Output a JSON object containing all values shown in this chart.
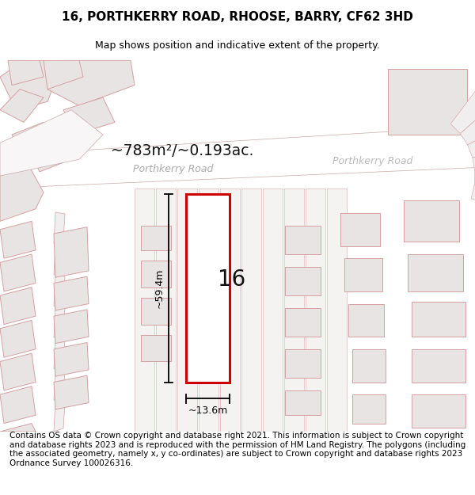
{
  "title": "16, PORTHKERRY ROAD, RHOOSE, BARRY, CF62 3HD",
  "subtitle": "Map shows position and indicative extent of the property.",
  "area_label": "~783m²/~0.193ac.",
  "street_label_left": "Porthkerry Road",
  "street_label_right": "Porthkerry Road",
  "plot_number": "16",
  "dim_height": "~59.4m",
  "dim_width": "~13.6m",
  "footer": "Contains OS data © Crown copyright and database right 2021. This information is subject to Crown copyright and database rights 2023 and is reproduced with the permission of HM Land Registry. The polygons (including the associated geometry, namely x, y co-ordinates) are subject to Crown copyright and database rights 2023 Ordnance Survey 100026316.",
  "map_bg": "#f5f3f2",
  "building_fill": "#e8e4e4",
  "building_edge": "#d4a0a0",
  "road_fill": "#ffffff",
  "road_edge": "#d4a0a0",
  "plot_fill": "#ffffff",
  "plot_edge": "#cc0000",
  "title_fontsize": 11,
  "subtitle_fontsize": 9,
  "footer_fontsize": 7.5
}
